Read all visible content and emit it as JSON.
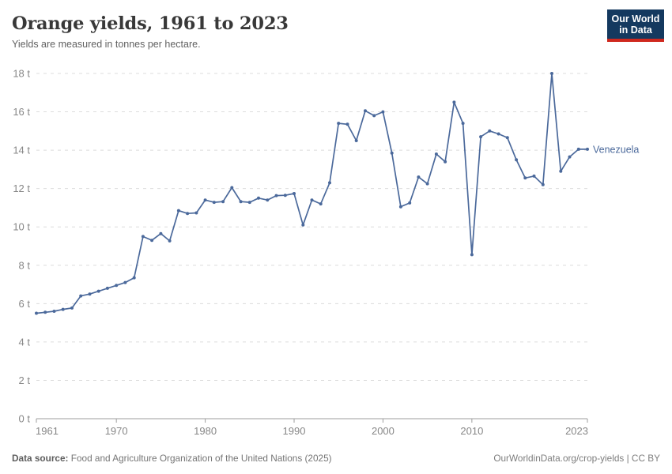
{
  "header": {
    "title": "Orange yields, 1961 to 2023",
    "subtitle": "Yields are measured in tonnes per hectare."
  },
  "logo": {
    "line1": "Our World",
    "line2": "in Data",
    "bg_color": "#14395f",
    "accent_color": "#cf281e"
  },
  "footer": {
    "source_label": "Data source:",
    "source_text": " Food and Agriculture Organization of the United Nations (2025)",
    "right_text": "OurWorldinData.org/crop-yields | CC BY"
  },
  "chart_data": {
    "type": "line",
    "title": "Orange yields, 1961 to 2023",
    "ylabel": "tonnes per hectare",
    "xlabel": "",
    "ylim": [
      0,
      18
    ],
    "yticks": [
      0,
      2,
      4,
      6,
      8,
      10,
      12,
      14,
      16,
      18
    ],
    "ytick_suffix": " t",
    "xticks": [
      1961,
      1970,
      1980,
      1990,
      2000,
      2010,
      2023
    ],
    "grid": "horizontal-dashed",
    "legend": "end-of-line-label",
    "colors": {
      "line": "#4b699b",
      "grid": "#dcdcdc",
      "axis": "#9e9e9e",
      "tick_label": "#878787"
    },
    "series": [
      {
        "name": "Venezuela",
        "color": "#4b699b",
        "x": [
          1961,
          1962,
          1963,
          1964,
          1965,
          1966,
          1967,
          1968,
          1969,
          1970,
          1971,
          1972,
          1973,
          1974,
          1975,
          1976,
          1977,
          1978,
          1979,
          1980,
          1981,
          1982,
          1983,
          1984,
          1985,
          1986,
          1987,
          1988,
          1989,
          1990,
          1991,
          1992,
          1993,
          1994,
          1995,
          1996,
          1997,
          1998,
          1999,
          2000,
          2001,
          2002,
          2003,
          2004,
          2005,
          2006,
          2007,
          2008,
          2009,
          2010,
          2011,
          2012,
          2013,
          2014,
          2015,
          2016,
          2017,
          2018,
          2019,
          2020,
          2021,
          2022,
          2023
        ],
        "values": [
          5.5,
          5.55,
          5.6,
          5.7,
          5.77,
          6.4,
          6.5,
          6.65,
          6.8,
          6.95,
          7.1,
          7.35,
          9.5,
          9.3,
          9.65,
          9.27,
          10.85,
          10.7,
          10.73,
          11.4,
          11.28,
          11.32,
          12.05,
          11.32,
          11.28,
          11.5,
          11.4,
          11.63,
          11.65,
          11.74,
          10.1,
          11.4,
          11.2,
          12.3,
          15.4,
          15.35,
          14.5,
          16.05,
          15.8,
          16.0,
          13.85,
          11.05,
          11.25,
          12.6,
          12.25,
          13.8,
          13.4,
          16.5,
          15.4,
          8.55,
          14.7,
          15.0,
          14.85,
          14.65,
          13.5,
          12.55,
          12.65,
          12.2,
          18.0,
          12.9,
          13.65,
          14.05,
          14.05
        ]
      }
    ]
  }
}
